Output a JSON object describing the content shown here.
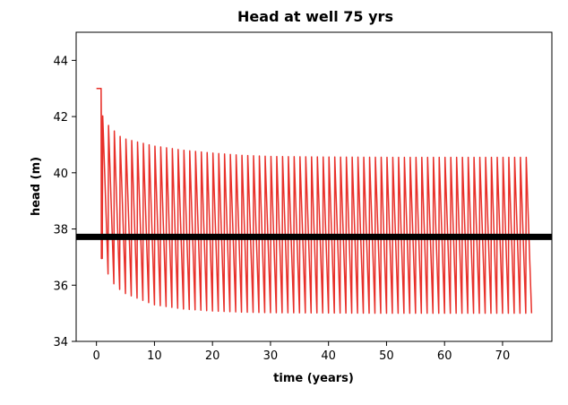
{
  "chart_data": {
    "type": "line",
    "title": "Head at well 75 yrs",
    "xlabel": "time (years)",
    "ylabel": "head (m)",
    "xlim": [
      -3.5,
      78.5
    ],
    "ylim": [
      34,
      45
    ],
    "xticks": [
      0,
      10,
      20,
      30,
      40,
      50,
      60,
      70
    ],
    "yticks": [
      34,
      36,
      38,
      40,
      42,
      44
    ],
    "grid": false,
    "legend": "none",
    "series": [
      {
        "color": "#e8302a",
        "description_of_shape": "seasonal oscillation, 1 cycle per year",
        "initial_value": 43.0,
        "initial_until": 0.8,
        "x_end": 75,
        "peak_asymptote": 40.55,
        "trough_asymptote": 35.0,
        "first_peak": 42.05,
        "first_trough": 36.95,
        "x": [
          0,
          0.8,
          1,
          2,
          3,
          4,
          5,
          10,
          15,
          20,
          25,
          30,
          40,
          50,
          60,
          70,
          75
        ],
        "peaks": [
          43.0,
          43.0,
          42.05,
          41.7,
          41.5,
          41.3,
          41.2,
          40.95,
          40.8,
          40.7,
          40.62,
          40.58,
          40.56,
          40.55,
          40.55,
          40.55,
          40.55
        ],
        "troughs": [
          43.0,
          43.0,
          36.95,
          36.4,
          36.05,
          35.85,
          35.7,
          35.3,
          35.15,
          35.08,
          35.04,
          35.02,
          35.01,
          35.0,
          35.0,
          35.0,
          35.0
        ]
      },
      {
        "color": "#000000",
        "description_of_shape": "horizontal reference line",
        "x": [
          -3.5,
          78.5
        ],
        "y": [
          37.72,
          37.72
        ]
      }
    ]
  }
}
